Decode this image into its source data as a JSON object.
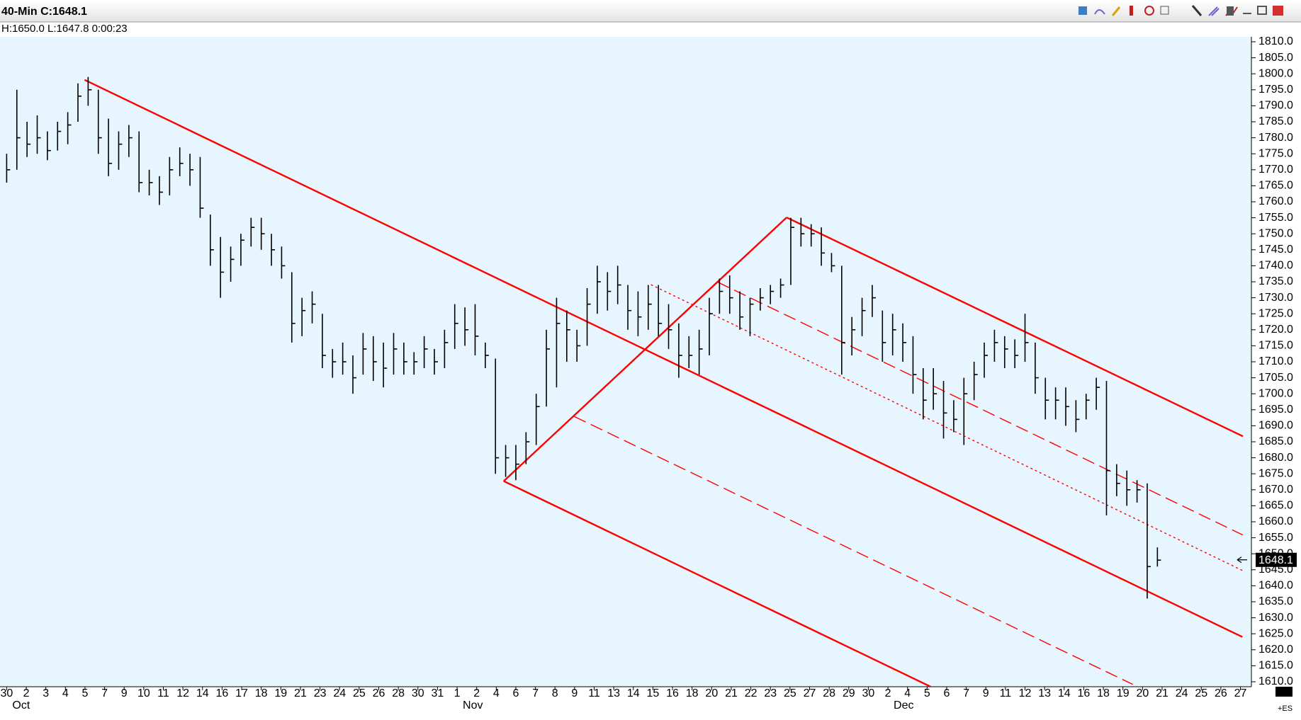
{
  "window": {
    "title": "40-Min C:1648.1",
    "info": "H:1650.0  L:1647.8  0:00:23",
    "symbol": "+ES"
  },
  "chart_data": {
    "type": "ohlc",
    "color": "#000000",
    "x": [
      0,
      0.52,
      1.04,
      1.56,
      2.08,
      2.6,
      3.12,
      3.64,
      4.16,
      4.68,
      5.2,
      5.72,
      6.24,
      6.76,
      7.28,
      7.8,
      8.32,
      8.84,
      9.36,
      9.88,
      10.4,
      10.92,
      11.44,
      11.96,
      12.48,
      13,
      13.52,
      14.04,
      14.56,
      15.08,
      15.6,
      16.12,
      16.64,
      17.16,
      17.68,
      18.2,
      18.72,
      19.24,
      19.76,
      20.28,
      20.8,
      21.32,
      21.84,
      22.36,
      22.88,
      23.4,
      23.92,
      24.44,
      24.96,
      25.48,
      26,
      26.52,
      27.04,
      27.56,
      28.08,
      28.6,
      29.12,
      29.64,
      30.16,
      30.68,
      31.2,
      31.72,
      32.24,
      32.76,
      33.28,
      33.8,
      34.32,
      34.84,
      35.36,
      35.88,
      36.4,
      36.92,
      37.44,
      37.96,
      38.48,
      39,
      39.52,
      40.04,
      40.56,
      41.08,
      41.6,
      42.12,
      42.64,
      43.16,
      43.68,
      44.2,
      44.72,
      45.24,
      45.76,
      46.28,
      46.8,
      47.32,
      47.84,
      48.36,
      48.88,
      49.4,
      49.92,
      50.44,
      50.96,
      51.48,
      52,
      52.52,
      53.04,
      53.56,
      54.08,
      54.6,
      55.12,
      55.64,
      56.16,
      56.68,
      57.2,
      57.72,
      58.24,
      58.76
    ],
    "high": [
      1775,
      1795,
      1785,
      1787,
      1782,
      1785,
      1788,
      1797,
      1799,
      1795,
      1786,
      1782,
      1784,
      1782,
      1770,
      1768,
      1774,
      1777,
      1775,
      1774,
      1756,
      1749,
      1746,
      1750,
      1755,
      1755,
      1750,
      1746,
      1738,
      1730,
      1732,
      1725,
      1714,
      1716,
      1712,
      1719,
      1718,
      1716,
      1719,
      1716,
      1713,
      1718,
      1714,
      1720,
      1728,
      1727,
      1728,
      1716,
      1711,
      1684,
      1684,
      1688,
      1700,
      1720,
      1730,
      1726,
      1720,
      1733,
      1740,
      1738,
      1740,
      1734,
      1732,
      1734,
      1734,
      1728,
      1722,
      1718,
      1720,
      1730,
      1736,
      1737,
      1732,
      1730,
      1733,
      1734,
      1736,
      1755,
      1755,
      1753,
      1752,
      1744,
      1740,
      1724,
      1730,
      1734,
      1726,
      1725,
      1722,
      1718,
      1708,
      1708,
      1704,
      1698,
      1705,
      1710,
      1716,
      1720,
      1718,
      1717,
      1725,
      1716,
      1705,
      1702,
      1702,
      1698,
      1700,
      1705,
      1704,
      1678,
      1676,
      1673,
      1672,
      1652
    ],
    "low": [
      1766,
      1770,
      1774,
      1775,
      1773,
      1776,
      1778,
      1785,
      1790,
      1775,
      1768,
      1770,
      1774,
      1763,
      1762,
      1759,
      1762,
      1768,
      1765,
      1755,
      1740,
      1730,
      1735,
      1740,
      1746,
      1745,
      1740,
      1736,
      1716,
      1718,
      1722,
      1708,
      1705,
      1706,
      1700,
      1706,
      1704,
      1702,
      1706,
      1706,
      1706,
      1708,
      1706,
      1708,
      1714,
      1715,
      1712,
      1708,
      1675,
      1674,
      1673,
      1678,
      1684,
      1696,
      1702,
      1710,
      1710,
      1715,
      1725,
      1726,
      1728,
      1720,
      1718,
      1720,
      1718,
      1714,
      1705,
      1708,
      1706,
      1712,
      1725,
      1725,
      1720,
      1718,
      1726,
      1728,
      1730,
      1734,
      1746,
      1746,
      1740,
      1738,
      1706,
      1712,
      1718,
      1724,
      1710,
      1712,
      1710,
      1700,
      1692,
      1695,
      1686,
      1688,
      1684,
      1698,
      1705,
      1710,
      1708,
      1708,
      1710,
      1700,
      1692,
      1692,
      1690,
      1688,
      1692,
      1695,
      1662,
      1668,
      1665,
      1666,
      1636,
      1646
    ],
    "close": [
      1770,
      1780,
      1778,
      1780,
      1776,
      1782,
      1784,
      1793,
      1795,
      1780,
      1772,
      1778,
      1780,
      1766,
      1766,
      1763,
      1770,
      1772,
      1770,
      1758,
      1745,
      1738,
      1742,
      1748,
      1752,
      1750,
      1745,
      1740,
      1722,
      1726,
      1728,
      1712,
      1710,
      1710,
      1705,
      1714,
      1710,
      1708,
      1714,
      1710,
      1710,
      1714,
      1710,
      1716,
      1722,
      1720,
      1718,
      1712,
      1680,
      1680,
      1678,
      1685,
      1696,
      1714,
      1722,
      1720,
      1715,
      1728,
      1735,
      1732,
      1734,
      1726,
      1724,
      1728,
      1722,
      1720,
      1712,
      1712,
      1714,
      1725,
      1732,
      1730,
      1724,
      1728,
      1730,
      1732,
      1734,
      1752,
      1750,
      1750,
      1744,
      1740,
      1716,
      1720,
      1726,
      1730,
      1716,
      1720,
      1716,
      1706,
      1698,
      1700,
      1694,
      1692,
      1700,
      1706,
      1712,
      1716,
      1714,
      1712,
      1716,
      1705,
      1698,
      1698,
      1696,
      1692,
      1698,
      1702,
      1676,
      1672,
      1670,
      1670,
      1646,
      1648
    ],
    "categories": [
      "30",
      "2",
      "3",
      "4",
      "5",
      "7",
      "9",
      "10",
      "11",
      "12",
      "14",
      "16",
      "17",
      "18",
      "19",
      "21",
      "23",
      "24",
      "25",
      "26",
      "28",
      "30",
      "31",
      "1",
      "2",
      "4",
      "6",
      "7",
      "8",
      "9",
      "11",
      "13",
      "14",
      "15",
      "16",
      "18",
      "20",
      "21",
      "22",
      "23",
      "25",
      "27",
      "28",
      "29",
      "30",
      "2",
      "4",
      "5",
      "6",
      "7",
      "9",
      "11",
      "12",
      "13",
      "14",
      "16",
      "18",
      "19",
      "20",
      "21",
      "24",
      "25",
      "26",
      "27"
    ],
    "months": [
      {
        "name": "Oct",
        "category": 0
      },
      {
        "name": "Nov",
        "category": 23
      },
      {
        "name": "Dec",
        "category": 45
      }
    ],
    "xlim": [
      -0.34,
      63.56
    ],
    "ylim": [
      1608.45,
      1811.55
    ],
    "yticks": [
      {
        "value": 1610,
        "label": "1610.0"
      },
      {
        "value": 1615,
        "label": "1615.0"
      },
      {
        "value": 1620,
        "label": "1620.0"
      },
      {
        "value": 1625,
        "label": "1625.0"
      },
      {
        "value": 1630,
        "label": "1630.0"
      },
      {
        "value": 1635,
        "label": "1635.0"
      },
      {
        "value": 1640,
        "label": "1640.0"
      },
      {
        "value": 1645,
        "label": "1645.0"
      },
      {
        "value": 1650,
        "label": "1650.0"
      },
      {
        "value": 1655,
        "label": "1655.0"
      },
      {
        "value": 1660,
        "label": "1660.0"
      },
      {
        "value": 1665,
        "label": "1665.0"
      },
      {
        "value": 1670,
        "label": "1670.0"
      },
      {
        "value": 1675,
        "label": "1675.0"
      },
      {
        "value": 1680,
        "label": "1680.0"
      },
      {
        "value": 1685,
        "label": "1685.0"
      },
      {
        "value": 1690,
        "label": "1690.0"
      },
      {
        "value": 1695,
        "label": "1695.0"
      },
      {
        "value": 1700,
        "label": "1700.0"
      },
      {
        "value": 1705,
        "label": "1705.0"
      },
      {
        "value": 1710,
        "label": "1710.0"
      },
      {
        "value": 1715,
        "label": "1715.0"
      },
      {
        "value": 1720,
        "label": "1720.0"
      },
      {
        "value": 1725,
        "label": "1725.0"
      },
      {
        "value": 1730,
        "label": "1730.0"
      },
      {
        "value": 1735,
        "label": "1735.0"
      },
      {
        "value": 1740,
        "label": "1740.0"
      },
      {
        "value": 1745,
        "label": "1745.0"
      },
      {
        "value": 1750,
        "label": "1750.0"
      },
      {
        "value": 1755,
        "label": "1755.0"
      },
      {
        "value": 1760,
        "label": "1760.0"
      },
      {
        "value": 1765,
        "label": "1765.0"
      },
      {
        "value": 1770,
        "label": "1770.0"
      },
      {
        "value": 1775,
        "label": "1775.0"
      },
      {
        "value": 1780,
        "label": "1780.0"
      },
      {
        "value": 1785,
        "label": "1785.0"
      },
      {
        "value": 1790,
        "label": "1790.0"
      },
      {
        "value": 1795,
        "label": "1795.0"
      },
      {
        "value": 1800,
        "label": "1800.0"
      },
      {
        "value": 1805,
        "label": "1805.0"
      },
      {
        "value": 1810,
        "label": "1810.0"
      }
    ],
    "last_price": 1648.1,
    "lines": [
      {
        "color": "#ff0000",
        "dash": "solid",
        "points": [
          [
            3.98,
            1798.1
          ],
          [
            63.1,
            1624
          ]
        ]
      },
      {
        "color": "#ff0000",
        "dash": "solid",
        "points": [
          [
            25.38,
            1672.7
          ],
          [
            39.83,
            1755.1
          ]
        ]
      },
      {
        "color": "#ff0000",
        "dash": "solid",
        "points": [
          [
            39.83,
            1755.1
          ],
          [
            63.13,
            1686.7
          ]
        ]
      },
      {
        "color": "#ff0000",
        "dash": "solid",
        "points": [
          [
            25.38,
            1672.7
          ],
          [
            47.2,
            1608.4
          ]
        ]
      },
      {
        "color": "#ff0000",
        "dash": "dashed",
        "points": [
          [
            28.98,
            1692.9
          ],
          [
            57.5,
            1609.2
          ]
        ]
      },
      {
        "color": "#ff0000",
        "dash": "dashed",
        "points": [
          [
            36.3,
            1734.9
          ],
          [
            63.13,
            1655.85
          ]
        ]
      },
      {
        "color": "#ff0000",
        "dash": "dotted",
        "points": [
          [
            32.9,
            1734.1
          ],
          [
            63.13,
            1644.7
          ]
        ]
      }
    ]
  }
}
